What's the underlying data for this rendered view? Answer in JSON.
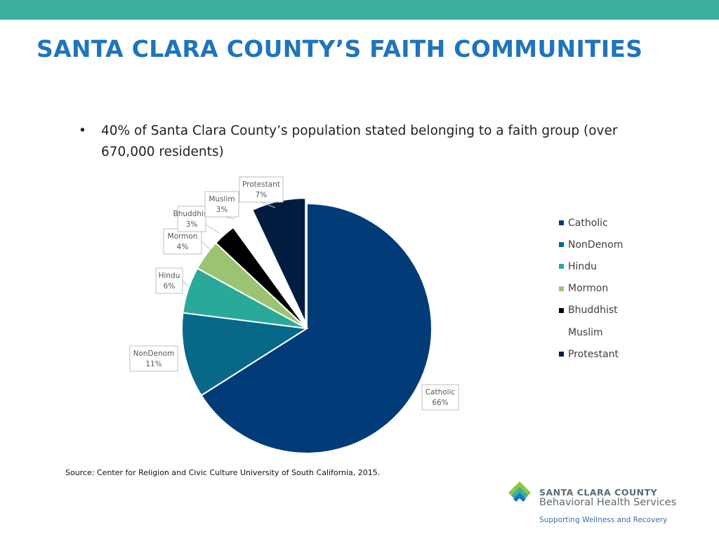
{
  "slide": {
    "title": "SANTA CLARA COUNTY’S FAITH COMMUNITIES",
    "bullet_symbol": "•",
    "bullet_text": "40% of Santa Clara County’s population stated belonging to a faith group (over 670,000 residents)",
    "source": "Source: Center for Religion and Civic Culture University of South California, 2015."
  },
  "logo": {
    "name_line1": "SANTA CLARA COUNTY",
    "name_line2": "Behavioral Health Services",
    "tagline": "Supporting Wellness and Recovery",
    "colors": [
      "#3aafa0",
      "#1f74bc",
      "#8dc63f"
    ]
  },
  "colors": {
    "top_bar": "#3aafa0",
    "title": "#1f74bc"
  },
  "chart_data": {
    "type": "pie",
    "title": "",
    "legend_position": "right",
    "slices": [
      {
        "name": "Catholic",
        "label": "Catholic",
        "percent_label": "66%",
        "value": 66,
        "color": "#013b78",
        "legend_swatch": true
      },
      {
        "name": "NonDenom",
        "label": "NonDenom",
        "percent_label": "11%",
        "value": 11,
        "color": "#076987",
        "legend_swatch": true
      },
      {
        "name": "Hindu",
        "label": "Hindu",
        "percent_label": "6%",
        "value": 6,
        "color": "#2aa99a",
        "legend_swatch": true
      },
      {
        "name": "Mormon",
        "label": "Mormon",
        "percent_label": "4%",
        "value": 4,
        "color": "#9bc472",
        "legend_swatch": true
      },
      {
        "name": "Bhuddhist",
        "label": "Bhuddhist",
        "percent_label": "3%",
        "value": 3,
        "color": "#000000",
        "legend_swatch": true
      },
      {
        "name": "Muslim",
        "label": "Muslim",
        "percent_label": "3%",
        "value": 3,
        "color": "#ffffff",
        "legend_swatch": false
      },
      {
        "name": "Protestant",
        "label": "Protestant",
        "percent_label": "7%",
        "value": 7,
        "color": "#011c3e",
        "legend_swatch": true
      }
    ]
  }
}
